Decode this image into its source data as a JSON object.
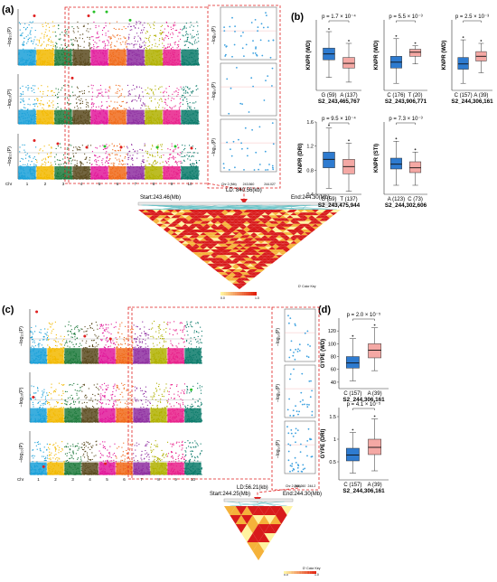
{
  "panel_labels": [
    "(a)",
    "(b)",
    "(c)",
    "(d)"
  ],
  "colors": {
    "chr": [
      "#1aa0d8",
      "#f2b800",
      "#1e7a3c",
      "#5a4a1e",
      "#e0199a",
      "#f06a1a",
      "#8e2ea0",
      "#b0b000",
      "#e8208a",
      "#0a7a6a"
    ],
    "box_blue": "#2e7bd0",
    "box_pink": "#f4a8a4",
    "dashed_red": "#e02020",
    "heat_hot": "#d81b1b",
    "heat_warm": "#f5b23a",
    "ld_line": "#6ac2c6"
  },
  "manhattan": {
    "ylabel": "−log₁₀(P)",
    "chr_label": "Chr",
    "chromosomes": [
      "1",
      "2",
      "3",
      "4",
      "5",
      "6",
      "7",
      "8",
      "9",
      "10"
    ]
  },
  "zoom_a": {
    "ylabel": "−log₁₀(P)",
    "xlabel": "Chr 2 (Mb)",
    "ticks": [
      "243.560",
      "244.027"
    ]
  },
  "zoom_c": {
    "ylabel": "−log₁₀(P)",
    "xlabel": "Chr 2 (Mb)",
    "ticks": [
      "244.260",
      "244.2"
    ]
  },
  "ld_a": {
    "start": "Start:243.46(Mb)",
    "end": "End:244.30(Mb)",
    "ld": "LD: 840.56(kb)",
    "key_title": "D' Color Key",
    "key_min": "0.0",
    "key_max": "1.0"
  },
  "ld_c": {
    "start": "Start:244.25(Mb)",
    "end": "End:244.30(Mb)",
    "ld": "LD:56.21(kb)",
    "key_title": "D' Color Key",
    "key_min": "0.0",
    "key_max": "1.0"
  },
  "chart_data": [
    {
      "type": "box",
      "id": "b1",
      "ylabel": "KNPR (WD)",
      "pvalue": "p = 1.7 × 10⁻⁴",
      "categories": [
        "G (59)",
        "A (137)"
      ],
      "snp": "S2_243,465,767",
      "ylim": [
        0.4,
        1.6
      ],
      "boxes": [
        {
          "q1": 0.92,
          "median": 1.02,
          "q3": 1.12,
          "low": 0.62,
          "high": 1.4
        },
        {
          "q1": 0.78,
          "median": 0.86,
          "q3": 0.96,
          "low": 0.54,
          "high": 1.2
        }
      ]
    },
    {
      "type": "box",
      "id": "b2",
      "ylabel": "KNPR (WD)",
      "pvalue": "p = 5.5 × 10⁻³",
      "categories": [
        "C (176)",
        "T (20)"
      ],
      "snp": "S2_243,906,771",
      "ylim": [
        0.4,
        1.6
      ],
      "boxes": [
        {
          "q1": 0.78,
          "median": 0.88,
          "q3": 0.98,
          "low": 0.52,
          "high": 1.28
        },
        {
          "q1": 0.98,
          "median": 1.05,
          "q3": 1.1,
          "low": 0.85,
          "high": 1.16
        }
      ]
    },
    {
      "type": "box",
      "id": "b3",
      "ylabel": "KNPR (WD)",
      "pvalue": "p = 2.5 × 10⁻³",
      "categories": [
        "C (157)",
        "A (39)"
      ],
      "snp": "S2_244,306,161",
      "ylim": [
        0.4,
        1.6
      ],
      "boxes": [
        {
          "q1": 0.76,
          "median": 0.85,
          "q3": 0.96,
          "low": 0.52,
          "high": 1.26
        },
        {
          "q1": 0.9,
          "median": 0.98,
          "q3": 1.06,
          "low": 0.7,
          "high": 1.2
        }
      ]
    },
    {
      "type": "box",
      "id": "b4",
      "ylabel": "KNPR (DRI)",
      "pvalue": "p = 9.5 × 10⁻⁴",
      "categories": [
        "G (59)",
        "T (137)"
      ],
      "snp": "S2_243,475,944",
      "ylim": [
        0.4,
        1.6
      ],
      "yticks": [
        0.4,
        0.8,
        1.2,
        1.6
      ],
      "boxes": [
        {
          "q1": 0.84,
          "median": 0.98,
          "q3": 1.1,
          "low": 0.5,
          "high": 1.5
        },
        {
          "q1": 0.74,
          "median": 0.86,
          "q3": 0.98,
          "low": 0.45,
          "high": 1.25
        }
      ]
    },
    {
      "type": "box",
      "id": "b5",
      "ylabel": "KNPR (STI)",
      "pvalue": "p = 7.3 × 10⁻³",
      "categories": [
        "A (123)",
        "C (73)"
      ],
      "snp": "S2_244,302,606",
      "ylim": [
        0.4,
        1.6
      ],
      "boxes": [
        {
          "q1": 0.82,
          "median": 0.9,
          "q3": 1.0,
          "low": 0.55,
          "high": 1.28
        },
        {
          "q1": 0.76,
          "median": 0.84,
          "q3": 0.94,
          "low": 0.55,
          "high": 1.1
        }
      ]
    },
    {
      "type": "box",
      "id": "d1",
      "ylabel": "GYPE (WD)",
      "pvalue": "p = 2.0 × 10⁻⁵",
      "categories": [
        "C (157)",
        "A (39)"
      ],
      "snp": "S2_244,306,161",
      "ylim": [
        30,
        140
      ],
      "yticks": [
        40,
        60,
        80,
        100,
        120
      ],
      "boxes": [
        {
          "q1": 62,
          "median": 70,
          "q3": 80,
          "low": 42,
          "high": 108
        },
        {
          "q1": 78,
          "median": 90,
          "q3": 100,
          "low": 58,
          "high": 125
        }
      ]
    },
    {
      "type": "box",
      "id": "d2",
      "ylabel": "GYPE (DRI)",
      "pvalue": "p = 4.1 × 10⁻⁵",
      "categories": [
        "C (157)",
        "A (39)"
      ],
      "snp": "S2_244,306,161",
      "ylim": [
        0.1,
        1.7
      ],
      "yticks": [
        0.5,
        1.0,
        1.5
      ],
      "boxes": [
        {
          "q1": 0.52,
          "median": 0.65,
          "q3": 0.8,
          "low": 0.25,
          "high": 1.15
        },
        {
          "q1": 0.66,
          "median": 0.82,
          "q3": 1.0,
          "low": 0.3,
          "high": 1.45
        }
      ]
    }
  ]
}
